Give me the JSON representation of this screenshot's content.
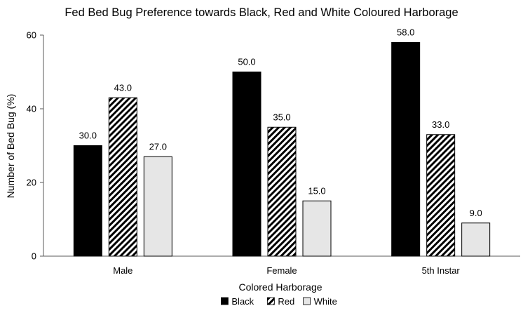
{
  "chart_data": {
    "type": "bar",
    "title": "Fed Bed Bug Preference towards Black, Red and White Coloured Harborage",
    "xlabel": "Colored Harborage",
    "ylabel": "Number of Bed Bug (%)",
    "categories": [
      "Male",
      "Female",
      "5th Instar"
    ],
    "series": [
      {
        "name": "Black",
        "values": [
          30.0,
          50.0,
          58.0
        ],
        "fill": "#000000",
        "pattern": "solid"
      },
      {
        "name": "Red",
        "values": [
          43.0,
          35.0,
          33.0
        ],
        "fill": "#000000",
        "pattern": "diagonal-hatch"
      },
      {
        "name": "White",
        "values": [
          27.0,
          15.0,
          9.0
        ],
        "fill": "#e6e6e6",
        "pattern": "solid"
      }
    ],
    "ylim": [
      0,
      60
    ],
    "yticks": [
      0,
      20,
      40,
      60
    ],
    "grid": false,
    "legend_position": "bottom",
    "data_label_format": "one-decimal"
  }
}
